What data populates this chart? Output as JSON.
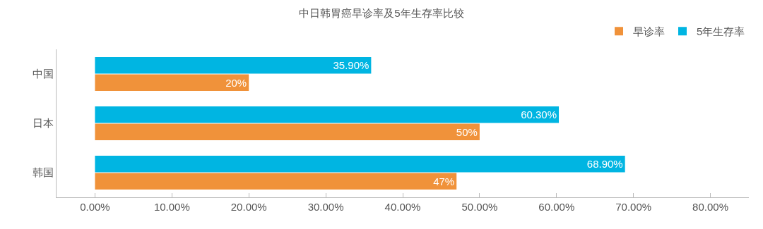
{
  "chart_data": {
    "type": "bar",
    "orientation": "horizontal",
    "title": "中日韩胃癌早诊率及5年生存率比较",
    "categories": [
      "中国",
      "日本",
      "韩国"
    ],
    "series": [
      {
        "name": "5年生存率",
        "color": "#00b5e2",
        "values": [
          35.9,
          60.3,
          68.9
        ],
        "value_labels": [
          "35.90%",
          "60.30%",
          "68.90%"
        ]
      },
      {
        "name": "早诊率",
        "color": "#f0923a",
        "values": [
          20,
          50,
          47
        ],
        "value_labels": [
          "20%",
          "50%",
          "47%"
        ]
      }
    ],
    "xlim": [
      -5,
      85
    ],
    "xticks": [
      {
        "value": 0,
        "label": "0.00%"
      },
      {
        "value": 10,
        "label": "10.00%"
      },
      {
        "value": 20,
        "label": "20.00%"
      },
      {
        "value": 30,
        "label": "30.00%"
      },
      {
        "value": 40,
        "label": "40.00%"
      },
      {
        "value": 50,
        "label": "50.00%"
      },
      {
        "value": 60,
        "label": "60.00%"
      },
      {
        "value": 70,
        "label": "70.00%"
      },
      {
        "value": 80,
        "label": "80.00%"
      }
    ],
    "grid": false,
    "legend": "top right"
  }
}
